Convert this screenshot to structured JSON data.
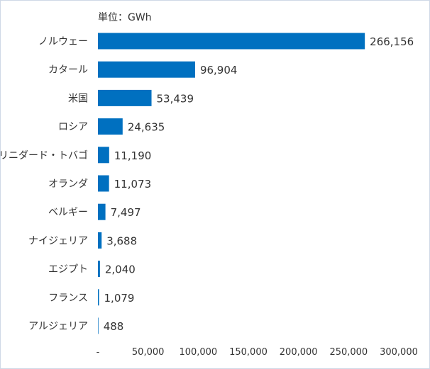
{
  "chart_data": {
    "type": "bar",
    "orientation": "horizontal",
    "unit_label": "単位：GWh",
    "categories": [
      "ノルウェー",
      "カタール",
      "米国",
      "ロシア",
      "トリニダード・トバゴ",
      "オランダ",
      "ベルギー",
      "ナイジェリア",
      "エジプト",
      "フランス",
      "アルジェリア"
    ],
    "values": [
      266156,
      96904,
      53439,
      24635,
      11190,
      11073,
      7497,
      3688,
      2040,
      1079,
      488
    ],
    "value_labels": [
      "266,156",
      "96,904",
      "53,439",
      "24,635",
      "11,190",
      "11,073",
      "7,497",
      "3,688",
      "2,040",
      "1,079",
      "488"
    ],
    "xlim": [
      0,
      300000
    ],
    "x_ticks": [
      0,
      50000,
      100000,
      150000,
      200000,
      250000,
      300000
    ],
    "x_tick_labels": [
      "-",
      "50,000",
      "100,000",
      "150,000",
      "200,000",
      "250,000",
      "300,000"
    ],
    "bar_color": "#0070c0",
    "grid": false,
    "legend": "none"
  }
}
